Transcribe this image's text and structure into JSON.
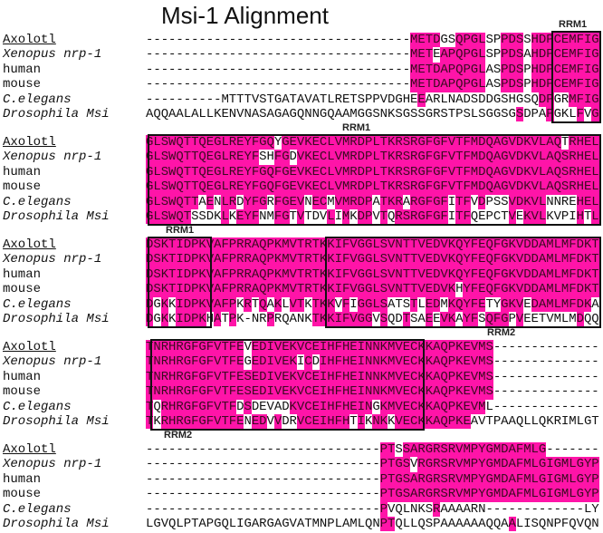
{
  "title": "Msi-1 Alignment",
  "highlight_color": "#ff14a8",
  "blocks": [
    {
      "rows": [
        {
          "label": "Axolotl",
          "seq": "-----------------------------------METDGSQPGLSPPDSSHDPCEMFIG"
        },
        {
          "label": "Xenopus nrp-1",
          "seq": "-----------------------------------METEAPQPGLSPPDSAHDPCEMFIG"
        },
        {
          "label": "human",
          "seq": "-----------------------------------METDAPQPGLASPDSPHDPCEMFIG"
        },
        {
          "label": "mouse",
          "seq": "-----------------------------------METDAPQPGLASPDSPHDPCEMFIG"
        },
        {
          "label": "C.elegans",
          "seq": "----------MTTTVSTGATAVATLRETSPPVDGHEEARLNADSDDGSHGSQDPGRMFIG"
        },
        {
          "label": "Drosophila Msi",
          "seq": "AQQAALALLKENVNASAGAGQNNGQAAMGGSNKSGSSGRSTPSLSGGSGSDPAPGKLFVG"
        }
      ]
    },
    {
      "rows": [
        {
          "label": "Axolotl",
          "seq": "GLSWQTTQEGLREYFGQYGEVKECLVMRDPLTKRSRGFGFVTFMDQAGVDKVLAQTRHEL"
        },
        {
          "label": "Xenopus nrp-1",
          "seq": "GLSWQTTQEGLREYFSHFGDVKECLVMRDPLTKRSRGFGFVTFMDQAGVDKVLAQSRHEL"
        },
        {
          "label": "human",
          "seq": "GLSWQTTQEGLREYFGQFGEVKECLVMRDPLTKRSRGFGFVTFMDQAGVDKVLAQSRHEL"
        },
        {
          "label": "mouse",
          "seq": "GLSWQTTQEGLREYFGQFGEVKECLVMRDPLTKRSRGFGFVTFMDQAGVDKVLAQSRHEL"
        },
        {
          "label": "C.elegans",
          "seq": "GLSWQTTAENLRDYFGRFGEVNECMVMRDPATKRARGFGFITFVDPSSVDKVLNNREHEL"
        },
        {
          "label": "Drosophila Msi",
          "seq": "GLSWQTSSDKLKEYFNMFGTVTDVLIMKDPVTQRSRGFGFITFQEPCTVEKVLKVPIHTL"
        }
      ]
    },
    {
      "rows": [
        {
          "label": "Axolotl",
          "seq": "DSKTIDPKVAFPRRAQPKMVTRTKKIFVGGLSVNTTVEDVKQYFEQFGKVDDAMLMFDKT"
        },
        {
          "label": "Xenopus nrp-1",
          "seq": "DSKTIDPKVAFPRRAQPKMVTRTKKIFVGGLSVNTTVEDVKQYFEQFGKVDDAMLMFDKT"
        },
        {
          "label": "human",
          "seq": "DSKTIDPKVAFPRRAQPKMVTRTKKIFVGGLSVNTTVEDVKQYFEQFGKVDDAMLMFDKT"
        },
        {
          "label": "mouse",
          "seq": "DSKTIDPKVAFPRRAQPKMVTRTKKIFVGGLSVNTTVEDVKHYFEQFGKVDDAMLMFDKT"
        },
        {
          "label": "C.elegans",
          "seq": "DGKKIDPKVAFPKRTQAKLVTKTKKVFIGGLSATSTLEDMKQYFETYGKVEDAMLMFDKA"
        },
        {
          "label": "Drosophila Msi",
          "seq": "DGKKIDPKHATPK-NRPRQANKTKKIFVGGVSQDTSAEEVKAYFSQFGPVEETVMLMDQQ"
        }
      ]
    },
    {
      "rows": [
        {
          "label": "Axolotl",
          "seq": "TNRHRGFGFVTFEVEDIVEKVCEIHFHEINNKMVECKKAQPKEVMS--------------"
        },
        {
          "label": "Xenopus nrp-1",
          "seq": "TNRHRGFGFVTFEGEDIVEKICDIHFHEINNKMVECKKAQPKEVMS--------------"
        },
        {
          "label": "human",
          "seq": "TNRHRGFGFVTFESEDIVEKVCEIHFHEINNKMVECKKAQPKEVMS--------------"
        },
        {
          "label": "mouse",
          "seq": "TNRHRGFGFVTFESEDIVEKVCEIHFHEINNKMVECKKAQPKEVMS--------------"
        },
        {
          "label": "C.elegans",
          "seq": "TQRHRGFGFVTFDSDEVADKVCEIHFHEINGKMVECKKAQPKEVML--------------"
        },
        {
          "label": "Drosophila Msi",
          "seq": "TKRHRGFGFVTFENEDVVDRVCEIHFHTIKNKKVECKKAQPKEAVTPAAQLLQKRIMLGT"
        }
      ]
    },
    {
      "rows": [
        {
          "label": "Axolotl",
          "seq": "-------------------------------PTSSARGRSRVMPYGMDAFMLG-------"
        },
        {
          "label": "Xenopus nrp-1",
          "seq": "-------------------------------PTGSVRGRSRVMPYGMDAFMLGIGMLGYP"
        },
        {
          "label": "human",
          "seq": "-------------------------------PTGSARGRSRVMPYGMDAFMLGIGMLGYP"
        },
        {
          "label": "mouse",
          "seq": "-------------------------------PTGSARGRSRVMPYGMDAFMLGIGMLGYP"
        },
        {
          "label": "C.elegans",
          "seq": "-------------------------------PVQLNKSRAAAARN-------------LY"
        },
        {
          "label": "Drosophila Msi",
          "seq": "LGVQLPTAPGQLIGARGAGVATMNPLAMLQNPTQLLQSPAAAAAAQQAALISQNPFQVQN"
        }
      ]
    }
  ],
  "domains": {
    "rrm1": "RRM1",
    "rrm2": "RRM2"
  }
}
